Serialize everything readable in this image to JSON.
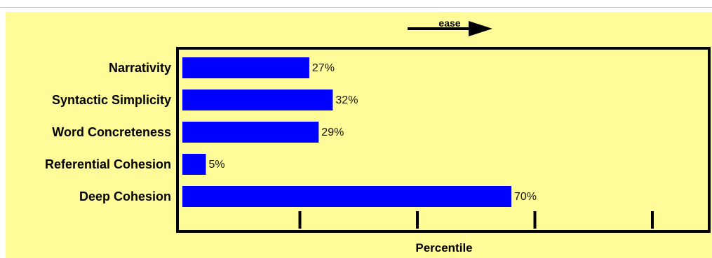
{
  "chart_data": {
    "type": "bar",
    "orientation": "horizontal",
    "categories": [
      "Narrativity",
      "Syntactic Simplicity",
      "Word Concreteness",
      "Referential Cohesion",
      "Deep Cohesion"
    ],
    "values": [
      27,
      32,
      29,
      5,
      70
    ],
    "value_labels": [
      "27%",
      "32%",
      "29%",
      "5%",
      "70%"
    ],
    "xlabel": "Percentile",
    "xlim": [
      0,
      100
    ],
    "annotation": "ease",
    "bar_color": "#0000ff",
    "background_color": "#fffb98",
    "grid": false,
    "legend": "none"
  }
}
